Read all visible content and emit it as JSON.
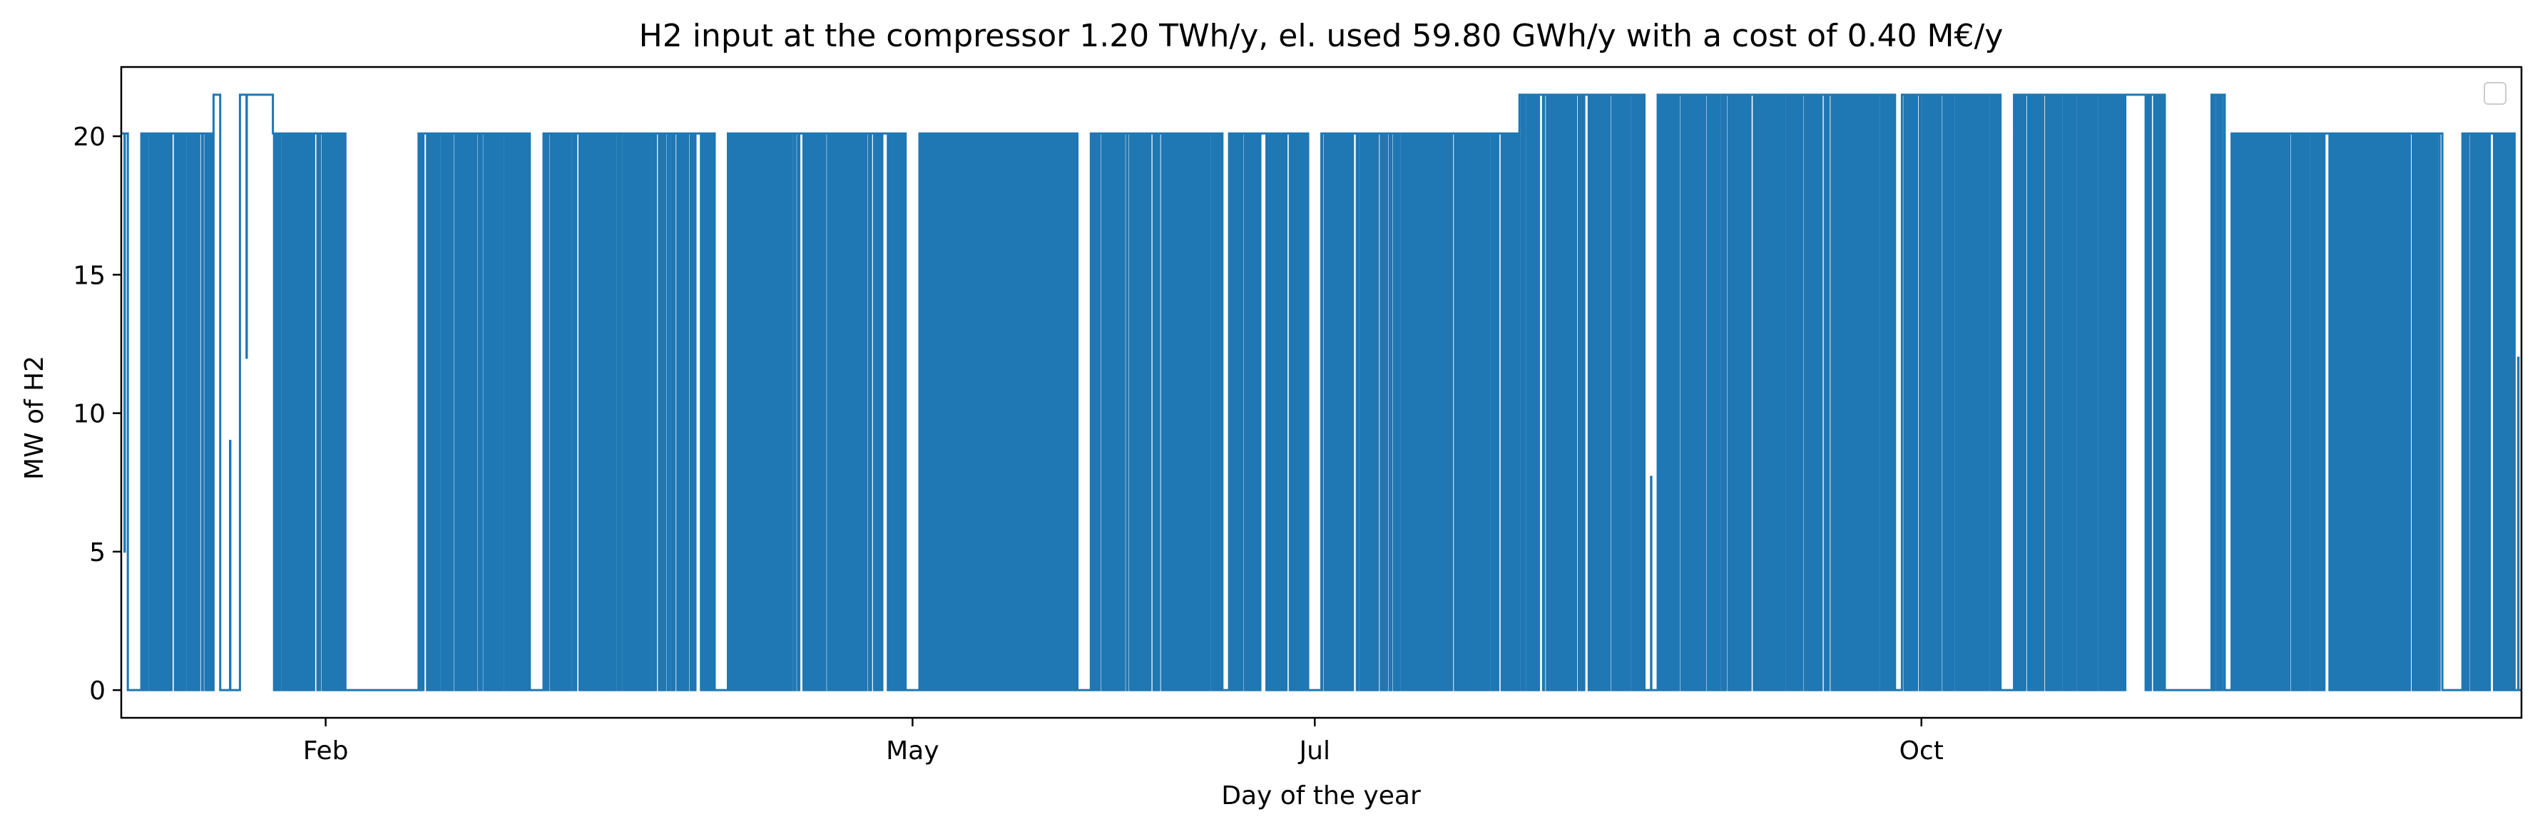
{
  "chart_data": {
    "type": "line",
    "title": "H2 input at the compressor 1.20 TWh/y, el. used 59.80 GWh/y with a cost of 0.40 M€/y",
    "xlabel": "Day of the year",
    "ylabel": "MW of H2",
    "xlim": [
      "2023-01-01",
      "2023-12-31"
    ],
    "ylim": [
      -1,
      22.5
    ],
    "x_ticks": [
      {
        "date": "2023-02-01",
        "label": "Feb"
      },
      {
        "date": "2023-05-01",
        "label": "May"
      },
      {
        "date": "2023-07-01",
        "label": "Jul"
      },
      {
        "date": "2023-10-01",
        "label": "Oct"
      }
    ],
    "y_ticks": [
      0,
      5,
      10,
      15,
      20
    ],
    "grid": false,
    "legend": {
      "position": "top-right",
      "entries": []
    },
    "series": [
      {
        "color": "#1f77b4",
        "resolution": "hourly",
        "levels": {
          "off": 0,
          "on": 20.1,
          "peak": 21.5
        },
        "segments": [
          {
            "start": "2023-01-01",
            "end": "2023-01-02",
            "state": "on",
            "partial": 5
          },
          {
            "start": "2023-01-02",
            "end": "2023-01-04",
            "state": "off"
          },
          {
            "start": "2023-01-04",
            "end": "2023-01-15",
            "state": "cycling",
            "level": 20.1
          },
          {
            "start": "2023-01-15",
            "end": "2023-01-16",
            "state": "peak"
          },
          {
            "start": "2023-01-16",
            "end": "2023-01-19",
            "state": "off",
            "partial": 9
          },
          {
            "start": "2023-01-19",
            "end": "2023-01-21",
            "state": "peak",
            "partial": 12
          },
          {
            "start": "2023-01-21",
            "end": "2023-01-24",
            "state": "peak"
          },
          {
            "start": "2023-01-24",
            "end": "2023-01-28",
            "state": "cycling",
            "level": 20.1
          },
          {
            "start": "2023-01-28",
            "end": "2023-01-31",
            "state": "cycling",
            "level": 20.1
          },
          {
            "start": "2023-01-31",
            "end": "2023-02-04",
            "state": "cycling",
            "level": 20.1
          },
          {
            "start": "2023-02-04",
            "end": "2023-02-15",
            "state": "off"
          },
          {
            "start": "2023-02-15",
            "end": "2023-02-24",
            "state": "cycling",
            "level": 20.1
          },
          {
            "start": "2023-02-24",
            "end": "2023-03-04",
            "state": "cycling",
            "level": 20.1
          },
          {
            "start": "2023-03-04",
            "end": "2023-03-06",
            "state": "off"
          },
          {
            "start": "2023-03-06",
            "end": "2023-03-23",
            "state": "cycling",
            "level": 20.1
          },
          {
            "start": "2023-03-23",
            "end": "2023-03-25",
            "state": "cycling",
            "level": 20.1
          },
          {
            "start": "2023-03-25",
            "end": "2023-04-01",
            "state": "cycling",
            "level": 20.1
          },
          {
            "start": "2023-04-01",
            "end": "2023-04-03",
            "state": "off"
          },
          {
            "start": "2023-04-03",
            "end": "2023-04-30",
            "state": "cycling",
            "level": 20.1
          },
          {
            "start": "2023-04-30",
            "end": "2023-05-02",
            "state": "off"
          },
          {
            "start": "2023-05-02",
            "end": "2023-05-26",
            "state": "cycling",
            "level": 20.1
          },
          {
            "start": "2023-05-26",
            "end": "2023-05-28",
            "state": "off"
          },
          {
            "start": "2023-05-28",
            "end": "2023-06-17",
            "state": "cycling",
            "level": 20.1
          },
          {
            "start": "2023-06-17",
            "end": "2023-06-18",
            "state": "off"
          },
          {
            "start": "2023-06-18",
            "end": "2023-06-30",
            "state": "cycling",
            "level": 20.1
          },
          {
            "start": "2023-06-30",
            "end": "2023-07-02",
            "state": "off"
          },
          {
            "start": "2023-07-02",
            "end": "2023-08-01",
            "state": "cycling",
            "level": 20.1
          },
          {
            "start": "2023-08-01",
            "end": "2023-08-20",
            "state": "cycling",
            "level": 21.5
          },
          {
            "start": "2023-08-20",
            "end": "2023-08-22",
            "state": "off",
            "partial": 7.7
          },
          {
            "start": "2023-08-22",
            "end": "2023-09-27",
            "state": "cycling",
            "level": 21.5
          },
          {
            "start": "2023-09-27",
            "end": "2023-09-28",
            "state": "off"
          },
          {
            "start": "2023-09-28",
            "end": "2023-10-13",
            "state": "cycling",
            "level": 21.5
          },
          {
            "start": "2023-10-13",
            "end": "2023-10-15",
            "state": "off"
          },
          {
            "start": "2023-10-15",
            "end": "2023-11-01",
            "state": "cycling",
            "level": 21.5
          },
          {
            "start": "2023-11-01",
            "end": "2023-11-04",
            "state": "peak"
          },
          {
            "start": "2023-11-04",
            "end": "2023-11-07",
            "state": "cycling",
            "level": 21.5
          },
          {
            "start": "2023-11-07",
            "end": "2023-11-14",
            "state": "off"
          },
          {
            "start": "2023-11-14",
            "end": "2023-11-16",
            "state": "cycling",
            "level": 21.5
          },
          {
            "start": "2023-11-16",
            "end": "2023-11-17",
            "state": "off"
          },
          {
            "start": "2023-11-17",
            "end": "2023-12-19",
            "state": "cycling",
            "level": 20.1
          },
          {
            "start": "2023-12-19",
            "end": "2023-12-22",
            "state": "off"
          },
          {
            "start": "2023-12-22",
            "end": "2023-12-30",
            "state": "cycling",
            "level": 20.1
          },
          {
            "start": "2023-12-30",
            "end": "2023-12-31",
            "state": "off",
            "partial": 12
          }
        ]
      }
    ]
  }
}
